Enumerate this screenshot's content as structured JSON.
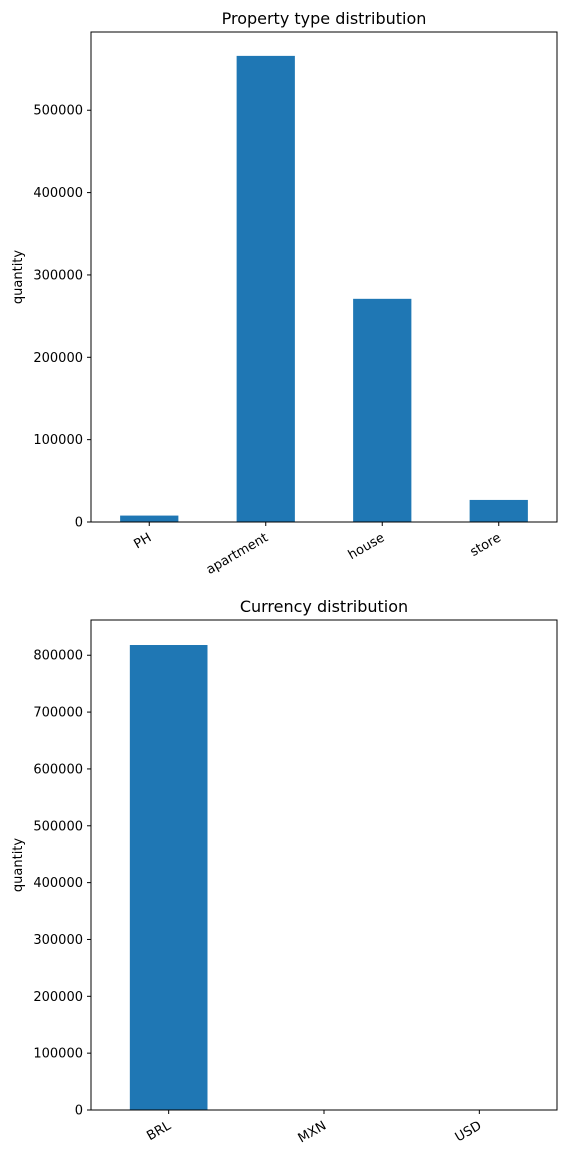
{
  "chart_data": [
    {
      "type": "bar",
      "title": "Property type distribution",
      "xlabel": "",
      "ylabel": "quantity",
      "categories": [
        "PH",
        "apartment",
        "house",
        "store"
      ],
      "values": [
        7800,
        566000,
        271000,
        26800
      ],
      "ylim": [
        0,
        595000
      ],
      "yticks": [
        0,
        100000,
        200000,
        300000,
        400000,
        500000
      ],
      "grid": false,
      "color": "#1f77b4"
    },
    {
      "type": "bar",
      "title": "Currency distribution",
      "xlabel": "",
      "ylabel": "quantity",
      "categories": [
        "BRL",
        "MXN",
        "USD"
      ],
      "values": [
        818000,
        0,
        0
      ],
      "ylim": [
        0,
        862000
      ],
      "yticks": [
        0,
        100000,
        200000,
        300000,
        400000,
        500000,
        600000,
        700000,
        800000
      ],
      "grid": false,
      "color": "#1f77b4"
    }
  ]
}
